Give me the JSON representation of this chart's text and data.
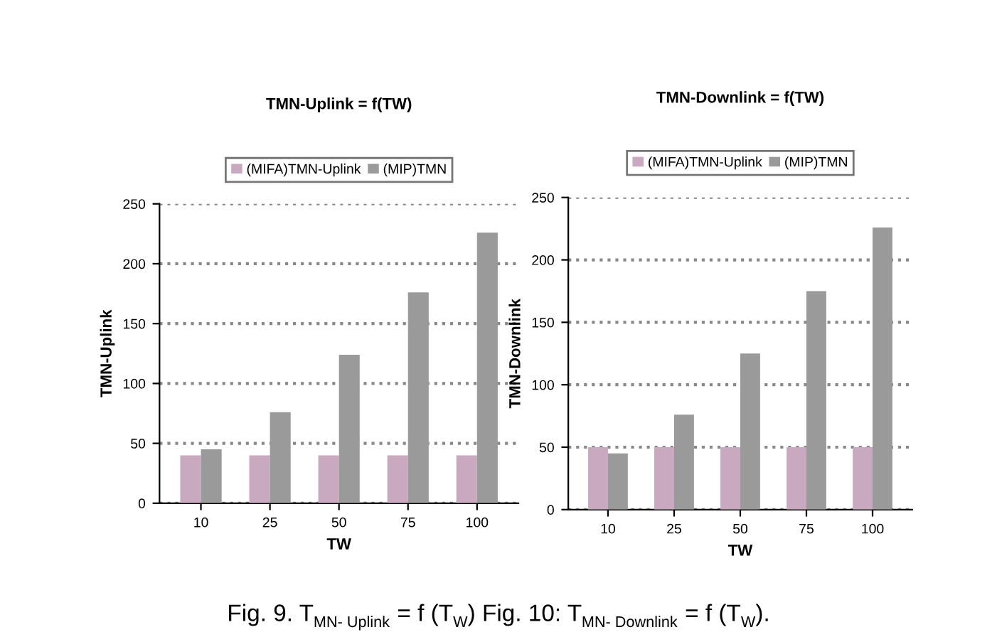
{
  "chart_data": [
    {
      "type": "bar",
      "title": "TMN-Uplink = f(TW)",
      "xlabel": "TW",
      "ylabel": "TMN-Uplink",
      "categories": [
        "10",
        "25",
        "50",
        "75",
        "100"
      ],
      "series": [
        {
          "name": "(MIFA)TMN-Uplink",
          "color": "#c9a9bf",
          "values": [
            40,
            40,
            40,
            40,
            40
          ]
        },
        {
          "name": "(MIP)TMN",
          "color": "#9a9a9a",
          "values": [
            45,
            76,
            124,
            176,
            226
          ]
        }
      ],
      "ylim": [
        0,
        250
      ],
      "yticks": [
        0,
        50,
        100,
        150,
        200,
        250
      ],
      "grid": "y",
      "legend": "top",
      "annotations": [
        "Fig. 9. T$_{MN- Uplink}$ = f (T$_{W}$) Fig. 10: T$_{MN- Downlink}$ = f (T$_{W}$)."
      ]
    },
    {
      "type": "bar",
      "title": "TMN-Downlink = f(TW)",
      "xlabel": "TW",
      "ylabel": "TMN-Downlink",
      "categories": [
        "10",
        "25",
        "50",
        "75",
        "100"
      ],
      "series": [
        {
          "name": "(MIFA)TMN-Uplink",
          "color": "#c9a9bf",
          "values": [
            50,
            50,
            50,
            50,
            50
          ]
        },
        {
          "name": "(MIP)TMN",
          "color": "#9a9a9a",
          "values": [
            45,
            76,
            125,
            175,
            226
          ]
        }
      ],
      "ylim": [
        0,
        250
      ],
      "yticks": [
        0,
        50,
        100,
        150,
        200,
        250
      ],
      "grid": "y",
      "legend": "top"
    }
  ]
}
